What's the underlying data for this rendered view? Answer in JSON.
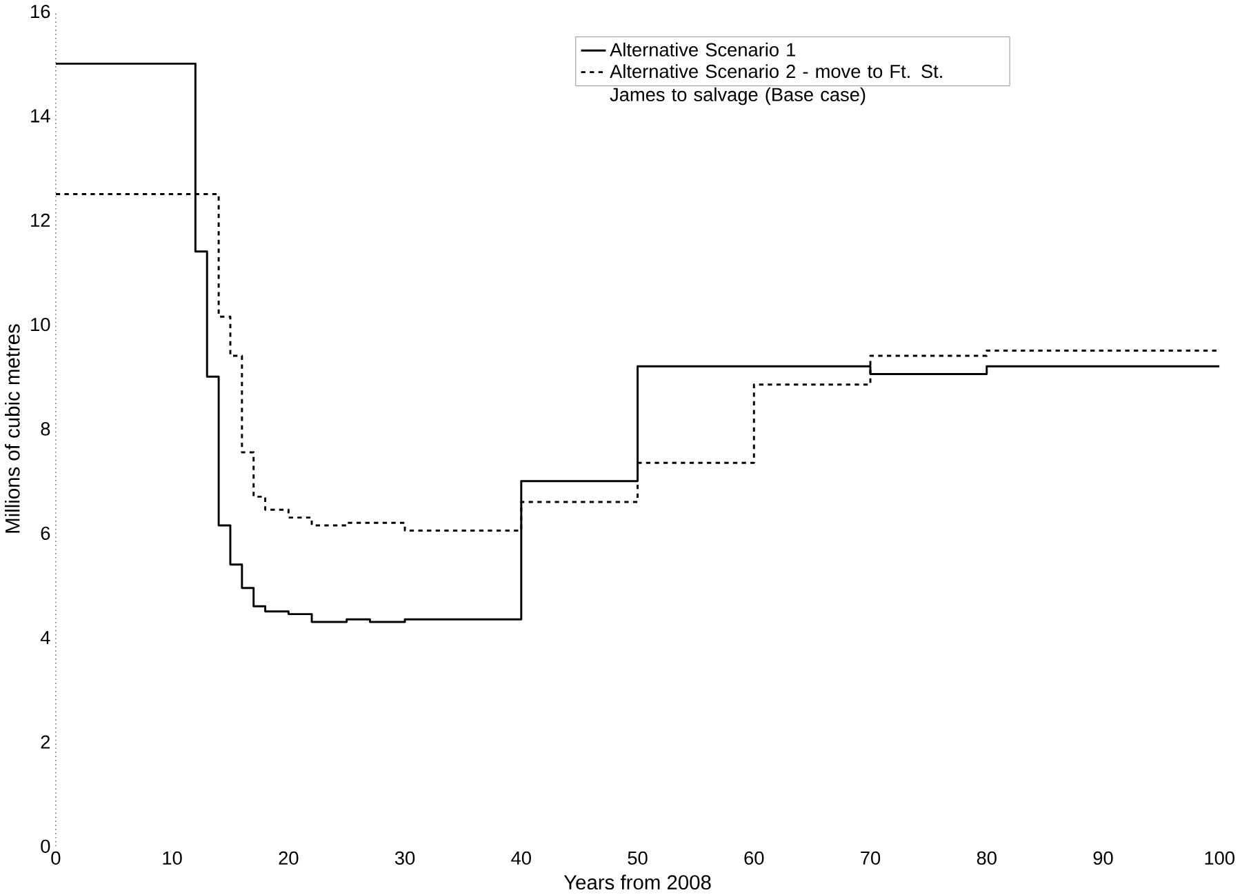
{
  "chart_data": {
    "type": "step",
    "xlabel": "Years from 2008",
    "ylabel": "Millions of cubic metres",
    "xlim": [
      0,
      100
    ],
    "ylim": [
      0,
      16
    ],
    "xticks": [
      0,
      10,
      20,
      30,
      40,
      50,
      60,
      70,
      80,
      90,
      100
    ],
    "yticks": [
      0,
      2,
      4,
      6,
      8,
      10,
      12,
      14,
      16
    ],
    "grid": false,
    "legend": "top right",
    "series": [
      {
        "name": "Alternative Scenario 1",
        "color": "#000000",
        "line_style": "solid",
        "x": [
          0,
          12,
          13,
          14,
          15,
          16,
          17,
          18,
          20,
          22,
          25,
          27,
          30,
          40,
          50,
          70,
          80,
          100
        ],
        "values": [
          15,
          11.4,
          9.0,
          6.15,
          5.4,
          4.95,
          4.6,
          4.5,
          4.45,
          4.3,
          4.35,
          4.3,
          4.35,
          7.0,
          9.2,
          9.05,
          9.2,
          9.2
        ]
      },
      {
        "name": "Alternative Scenario 2 - move to Ft. St. James to salvage (Base case)",
        "color": "#000000",
        "line_style": "dashed",
        "x": [
          0,
          14,
          15,
          16,
          17,
          18,
          20,
          22,
          25,
          30,
          40,
          50,
          60,
          70,
          80,
          100
        ],
        "values": [
          12.5,
          10.15,
          9.4,
          7.55,
          6.7,
          6.45,
          6.3,
          6.15,
          6.2,
          6.05,
          6.6,
          7.35,
          8.85,
          9.4,
          9.5,
          9.5
        ]
      }
    ]
  }
}
